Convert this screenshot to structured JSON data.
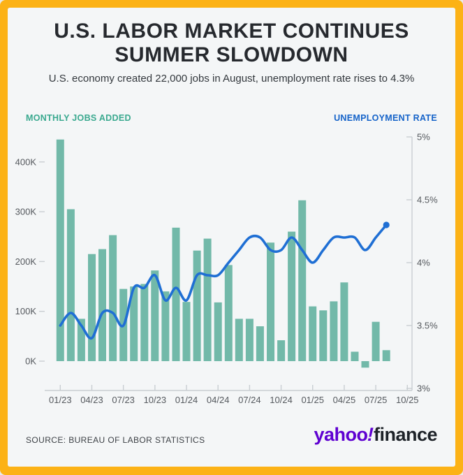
{
  "header": {
    "title_line1": "U.S. LABOR MARKET CONTINUES",
    "title_line2": "SUMMER SLOWDOWN",
    "subtitle": "U.S. economy created 22,000 jobs in August, unemployment rate rises to 4.3%"
  },
  "legend": {
    "left_label": "MONTHLY JOBS ADDED",
    "right_label": "UNEMPLOYMENT RATE"
  },
  "footer": {
    "source": "SOURCE: BUREAU OF LABOR STATISTICS",
    "logo_yahoo": "yahoo",
    "logo_bang": "!",
    "logo_finance": "finance"
  },
  "colors": {
    "frame_yellow": "#fcb216",
    "card_bg": "#f4f6f7",
    "title_dark": "#26292e",
    "subtitle_dark": "#33383d",
    "legend_teal": "#3aa98f",
    "legend_blue": "#1563c9",
    "bar_teal": "#72b9a9",
    "line_blue": "#1f6fd4",
    "axis_text": "#55595e",
    "axis_line": "#c9ced2",
    "source_text": "#3c4045",
    "logo_purple": "#5f01d1",
    "logo_dark": "#1d2228"
  },
  "chart_data": {
    "type": "combo",
    "title": "U.S. LABOR MARKET CONTINUES SUMMER SLOWDOWN",
    "x": [
      "01/23",
      "02/23",
      "03/23",
      "04/23",
      "05/23",
      "06/23",
      "07/23",
      "08/23",
      "09/23",
      "10/23",
      "11/23",
      "12/23",
      "01/24",
      "02/24",
      "03/24",
      "04/24",
      "05/24",
      "06/24",
      "07/24",
      "08/24",
      "09/24",
      "10/24",
      "11/24",
      "12/24",
      "01/25",
      "02/25",
      "03/25",
      "04/25",
      "05/25",
      "06/25",
      "07/25",
      "08/25"
    ],
    "series": [
      {
        "name": "Monthly jobs added",
        "type": "bar",
        "axis": "left",
        "unit": "thousands of jobs",
        "values": [
          445,
          305,
          85,
          215,
          225,
          253,
          145,
          150,
          155,
          182,
          140,
          268,
          119,
          222,
          246,
          118,
          193,
          85,
          85,
          70,
          238,
          42,
          260,
          323,
          110,
          102,
          120,
          158,
          19,
          -13,
          79,
          22
        ]
      },
      {
        "name": "Unemployment rate",
        "type": "line",
        "axis": "right",
        "unit": "percent",
        "values": [
          3.5,
          3.6,
          3.5,
          3.4,
          3.6,
          3.6,
          3.5,
          3.8,
          3.8,
          3.9,
          3.7,
          3.8,
          3.7,
          3.9,
          3.9,
          3.9,
          4.0,
          4.1,
          4.2,
          4.2,
          4.1,
          4.1,
          4.2,
          4.1,
          4.0,
          4.1,
          4.2,
          4.2,
          4.2,
          4.1,
          4.2,
          4.3
        ]
      }
    ],
    "left_axis": {
      "label": "MONTHLY JOBS ADDED",
      "ticks": [
        "0K",
        "100K",
        "200K",
        "300K",
        "400K"
      ],
      "tick_values": [
        0,
        100,
        200,
        300,
        400
      ],
      "range": [
        -25,
        455
      ]
    },
    "right_axis": {
      "label": "UNEMPLOYMENT RATE",
      "ticks": [
        "3%",
        "3.5%",
        "4%",
        "4.5%",
        "5%"
      ],
      "tick_values": [
        3,
        3.5,
        4,
        4.5,
        5
      ],
      "range": [
        3,
        5
      ]
    },
    "x_axis": {
      "tick_labels": [
        "01/23",
        "04/23",
        "07/23",
        "10/23",
        "01/24",
        "04/24",
        "07/24",
        "10/24",
        "01/25",
        "04/25",
        "07/25",
        "10/25"
      ],
      "tick_month_indices": [
        0,
        3,
        6,
        9,
        12,
        15,
        18,
        21,
        24,
        27,
        30,
        33
      ]
    },
    "grid": false,
    "legend_position": "top",
    "annotations": [
      "dot marker on final line point (08/25, 4.3%)"
    ]
  }
}
